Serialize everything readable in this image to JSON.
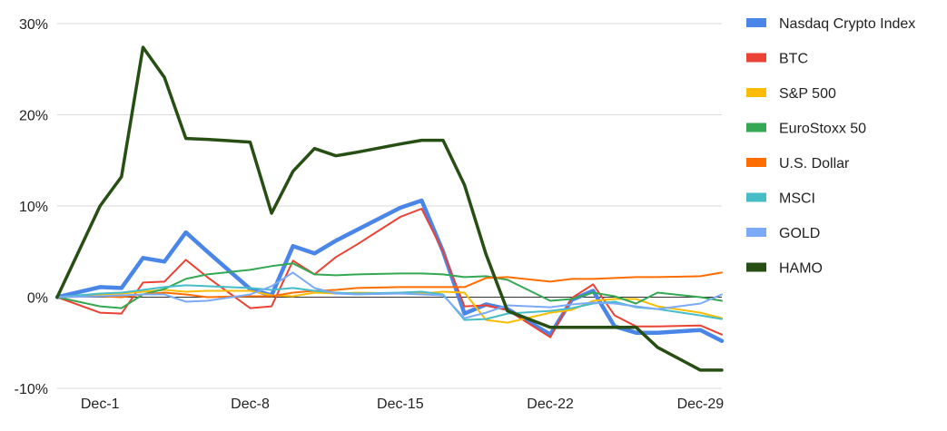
{
  "chart_data": {
    "type": "line",
    "title": "",
    "xlabel": "",
    "ylabel": "",
    "ylim": [
      -10,
      30
    ],
    "yticks": [
      -10,
      0,
      10,
      20,
      30
    ],
    "ytick_labels": [
      "-10%",
      "0%",
      "10%",
      "20%",
      "30%"
    ],
    "xticks": [
      2,
      9,
      16,
      23,
      30
    ],
    "xtick_labels": [
      "Dec-1",
      "Dec-8",
      "Dec-15",
      "Dec-22",
      "Dec-29"
    ],
    "grid": true,
    "legend_position": "right",
    "x": [
      0,
      2,
      3,
      4,
      5,
      6,
      7,
      9,
      10,
      11,
      12,
      13,
      14,
      16,
      17,
      18,
      19,
      20,
      21,
      23,
      24,
      25,
      26,
      27,
      28,
      30,
      31
    ],
    "series": [
      {
        "name": "Nasdaq Crypto Index",
        "color": "#4a86e8",
        "values": [
          0,
          1.1,
          1.0,
          4.3,
          3.9,
          7.1,
          5.0,
          0.9,
          0.2,
          5.6,
          4.8,
          6.2,
          7.4,
          9.8,
          10.6,
          5.0,
          -1.8,
          -0.8,
          -1.3,
          -4.1,
          -0.3,
          0.7,
          -3.2,
          -3.9,
          -3.9,
          -3.6,
          -4.8
        ]
      },
      {
        "name": "BTC",
        "color": "#ea4335",
        "values": [
          0,
          -1.7,
          -1.8,
          1.6,
          1.7,
          4.1,
          2.2,
          -1.2,
          -1.0,
          4.0,
          2.5,
          4.4,
          5.8,
          8.8,
          9.7,
          5.0,
          -1.0,
          -0.9,
          -1.4,
          -4.4,
          -0.1,
          1.4,
          -2.0,
          -3.2,
          -3.2,
          -3.1,
          -4.1
        ]
      },
      {
        "name": "S&P 500",
        "color": "#fbbc04",
        "values": [
          0,
          0.3,
          0.4,
          0.6,
          0.8,
          0.6,
          0.7,
          0.7,
          0.2,
          0.1,
          0.5,
          0.4,
          0.5,
          0.4,
          0.4,
          0.6,
          0.5,
          -2.5,
          -2.8,
          -1.7,
          -1.4,
          -0.4,
          -0.2,
          -0.2,
          -1.0,
          -1.7,
          -2.3
        ]
      },
      {
        "name": "EuroStoxx 50",
        "color": "#34a853",
        "values": [
          0,
          -1.0,
          -1.2,
          0.3,
          0.9,
          2.0,
          2.5,
          3.0,
          3.4,
          3.7,
          2.5,
          2.4,
          2.5,
          2.6,
          2.6,
          2.5,
          2.2,
          2.3,
          1.9,
          -0.4,
          -0.2,
          0.5,
          0.1,
          -0.7,
          0.5,
          0.0,
          -0.4
        ]
      },
      {
        "name": "U.S. Dollar",
        "color": "#ff6d01",
        "values": [
          0,
          0.1,
          0.0,
          0.3,
          0.5,
          0.3,
          0.0,
          0.1,
          0.1,
          0.5,
          0.7,
          0.8,
          1.0,
          1.1,
          1.1,
          1.1,
          1.1,
          2.1,
          2.2,
          1.7,
          2.0,
          2.0,
          2.1,
          2.2,
          2.2,
          2.3,
          2.7
        ]
      },
      {
        "name": "MSCI",
        "color": "#46bdc6",
        "values": [
          0,
          0.4,
          0.5,
          0.8,
          1.1,
          1.3,
          1.2,
          1.0,
          0.8,
          1.0,
          0.7,
          0.5,
          0.4,
          0.5,
          0.6,
          0.3,
          -2.5,
          -2.4,
          -1.8,
          -1.5,
          -1.2,
          -0.7,
          -0.5,
          -1.1,
          -1.3,
          -2.0,
          -2.4
        ]
      },
      {
        "name": "GOLD",
        "color": "#7baaf7",
        "values": [
          0,
          0.1,
          0.2,
          0.3,
          0.3,
          -0.5,
          -0.4,
          0.3,
          1.2,
          2.7,
          1.0,
          0.4,
          0.3,
          0.4,
          0.3,
          0.2,
          -2.3,
          -1.7,
          -0.9,
          -1.1,
          -0.8,
          -0.6,
          -0.7,
          -1.0,
          -1.3,
          -0.7,
          0.3
        ]
      },
      {
        "name": "HAMO",
        "color": "#274e13",
        "values": [
          0,
          10.0,
          13.2,
          27.4,
          24.1,
          17.4,
          17.3,
          17.0,
          9.2,
          13.8,
          16.3,
          15.5,
          15.9,
          16.8,
          17.2,
          17.2,
          12.3,
          4.7,
          -1.5,
          -3.3,
          -3.3,
          -3.3,
          -3.3,
          -3.3,
          -5.5,
          -8.0,
          -8.0
        ]
      }
    ]
  }
}
